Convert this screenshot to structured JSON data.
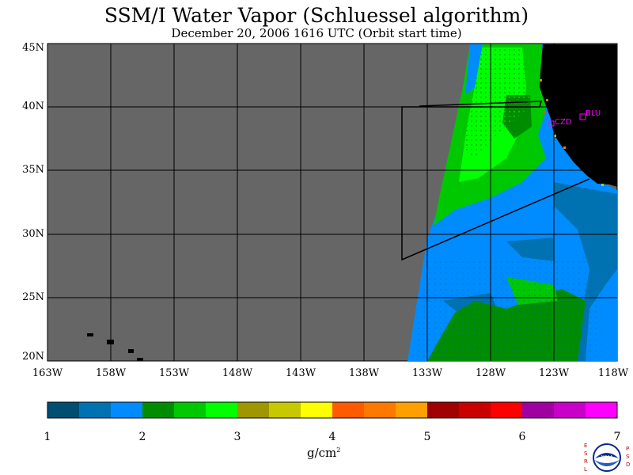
{
  "title": "SSM/I Water Vapor (Schluessel algorithm)",
  "subtitle": "December 20, 2006  1616 UTC  (Orbit start time)",
  "map": {
    "lat_labels": [
      "45N",
      "40N",
      "35N",
      "30N",
      "25N",
      "20N"
    ],
    "lon_labels": [
      "163W",
      "158W",
      "153W",
      "148W",
      "143W",
      "138W",
      "133W",
      "128W",
      "123W",
      "118W"
    ],
    "lat_range": [
      20,
      45
    ],
    "lon_range": [
      -163,
      -118
    ],
    "stations": [
      {
        "name": "CZD",
        "color": "#ff00ff"
      },
      {
        "name": "BLU",
        "color": "#ff00ff"
      }
    ],
    "background_color": "#666666",
    "land_color": "#000000"
  },
  "colorbar": {
    "ticks": [
      "1",
      "2",
      "3",
      "4",
      "5",
      "6",
      "7"
    ],
    "units_base": "g/cm",
    "units_exp": "2",
    "colors": [
      "#004e72",
      "#0072b2",
      "#008cff",
      "#008c00",
      "#00c800",
      "#00ff00",
      "#a09600",
      "#c8c800",
      "#ffff00",
      "#ff5a00",
      "#ff7800",
      "#ffa000",
      "#a00000",
      "#c80000",
      "#ff0000",
      "#a000a0",
      "#c800c8",
      "#ff00ff"
    ]
  },
  "logo": {
    "left_letters": "ESRL",
    "right_letters": "PSD",
    "center_text": "NOAA"
  }
}
